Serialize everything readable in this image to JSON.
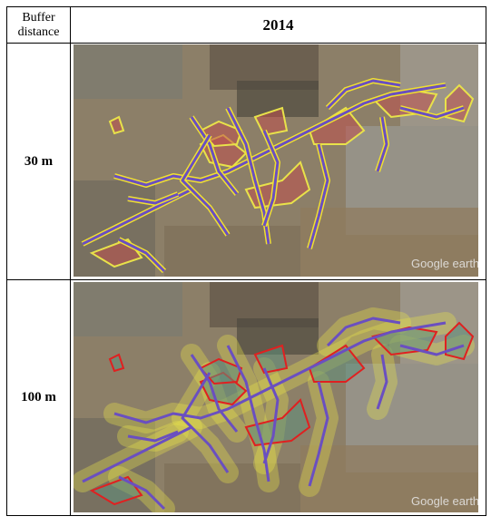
{
  "table": {
    "header": [
      "Buffer distance",
      "2014"
    ],
    "rows": [
      [
        "30 m"
      ],
      [
        "100 m"
      ]
    ]
  },
  "images": [
    {
      "watermark": "Google earth"
    },
    {
      "watermark": "Google earth"
    }
  ]
}
